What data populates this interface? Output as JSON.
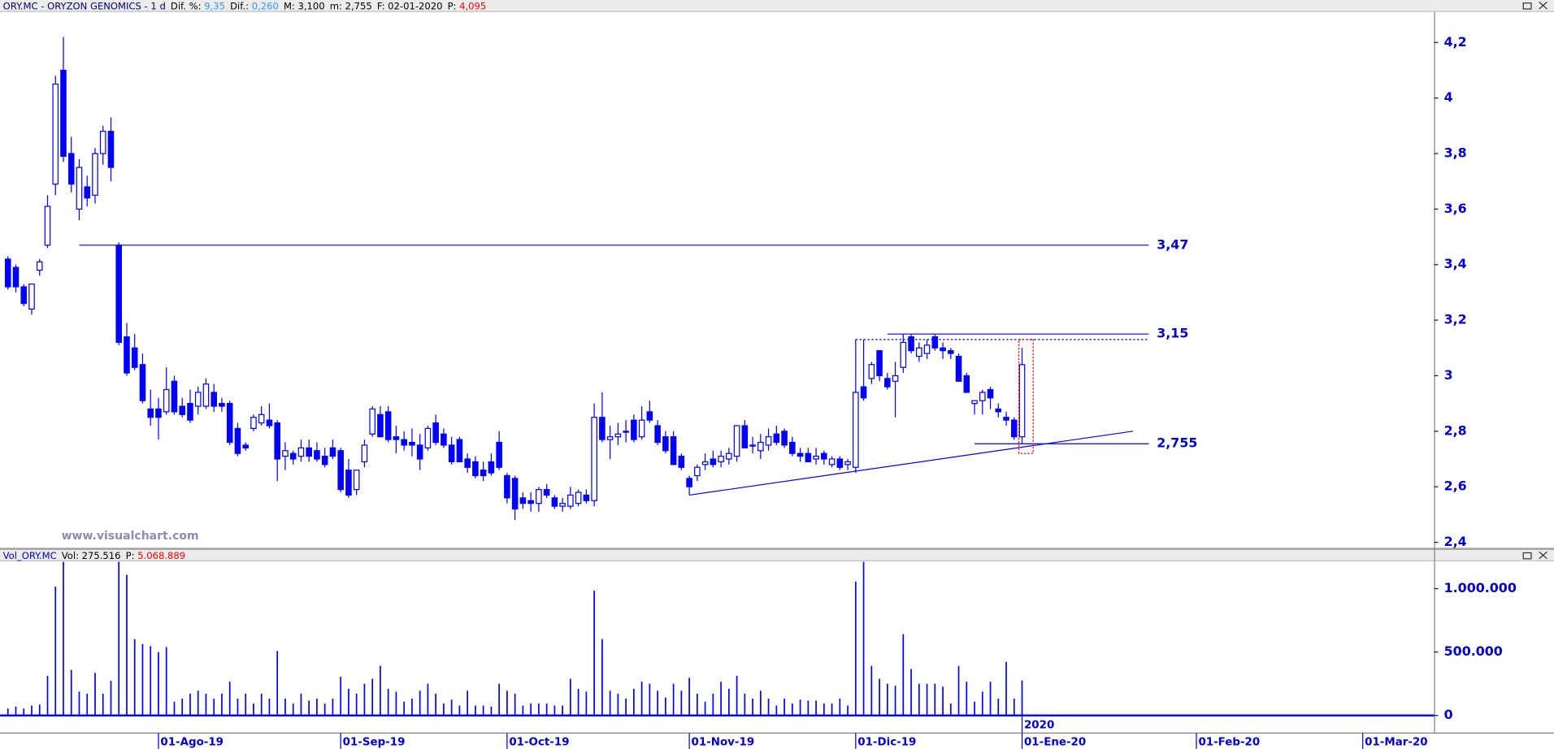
{
  "chart_data": [
    {
      "type": "candlestick",
      "title": "ORY.MC - ORYZON GENOMICS - 1 d",
      "fields": [
        {
          "label": "Dif. %:",
          "value": "9,35",
          "color": "#3399ff"
        },
        {
          "label": "Dif.:",
          "value": "0,260",
          "color": "#3399ff"
        },
        {
          "label": "M:",
          "value": "3,100",
          "color": "#000000"
        },
        {
          "label": "m:",
          "value": "2,755",
          "color": "#000000"
        },
        {
          "label": "F:",
          "value": "02-01-2020",
          "color": "#000000"
        },
        {
          "label": "P:",
          "value": "4,095",
          "color": "#ff0000"
        }
      ],
      "watermark": "www.visualchart.com",
      "color": "#0000ff",
      "xlim": [
        -1,
        180
      ],
      "ylim": [
        2.38,
        4.31
      ],
      "yticks": [
        {
          "value": 4.2,
          "label": "4,2"
        },
        4,
        {
          "value": 3.8,
          "label": "3,8"
        },
        {
          "value": 3.6,
          "label": "3,6"
        },
        {
          "value": 3.4,
          "label": "3,4"
        },
        {
          "value": 3.2,
          "label": "3,2"
        },
        3,
        {
          "value": 2.8,
          "label": "2,8"
        },
        {
          "value": 2.6,
          "label": "2,6"
        },
        {
          "value": 2.4,
          "label": "2,4"
        }
      ],
      "ohlc": [
        [
          3.42,
          3.43,
          3.31,
          3.32
        ],
        [
          3.39,
          3.4,
          3.3,
          3.32
        ],
        [
          3.32,
          3.33,
          3.25,
          3.26
        ],
        [
          3.24,
          3.33,
          3.22,
          3.33
        ],
        [
          3.38,
          3.42,
          3.36,
          3.41
        ],
        [
          3.47,
          3.65,
          3.46,
          3.61
        ],
        [
          3.69,
          4.08,
          3.65,
          4.05
        ],
        [
          4.1,
          4.22,
          3.77,
          3.79
        ],
        [
          3.8,
          3.86,
          3.66,
          3.69
        ],
        [
          3.6,
          3.78,
          3.56,
          3.75
        ],
        [
          3.68,
          3.72,
          3.61,
          3.64
        ],
        [
          3.65,
          3.82,
          3.62,
          3.8
        ],
        [
          3.8,
          3.9,
          3.76,
          3.88
        ],
        [
          3.88,
          3.93,
          3.7,
          3.75
        ],
        [
          3.47,
          3.48,
          3.11,
          3.12
        ],
        [
          3.14,
          3.19,
          3.0,
          3.01
        ],
        [
          3.1,
          3.15,
          3.02,
          3.03
        ],
        [
          3.04,
          3.08,
          2.9,
          2.91
        ],
        [
          2.88,
          2.95,
          2.82,
          2.85
        ],
        [
          2.88,
          2.92,
          2.77,
          2.85
        ],
        [
          2.87,
          3.03,
          2.86,
          2.95
        ],
        [
          2.98,
          3.0,
          2.86,
          2.87
        ],
        [
          2.89,
          2.92,
          2.85,
          2.86
        ],
        [
          2.9,
          2.95,
          2.83,
          2.84
        ],
        [
          2.89,
          2.96,
          2.86,
          2.94
        ],
        [
          2.89,
          2.99,
          2.88,
          2.97
        ],
        [
          2.94,
          2.97,
          2.87,
          2.89
        ],
        [
          2.9,
          2.92,
          2.87,
          2.89
        ],
        [
          2.9,
          2.91,
          2.75,
          2.76
        ],
        [
          2.81,
          2.83,
          2.71,
          2.72
        ],
        [
          2.75,
          2.76,
          2.73,
          2.74
        ],
        [
          2.81,
          2.86,
          2.8,
          2.85
        ],
        [
          2.83,
          2.89,
          2.82,
          2.86
        ],
        [
          2.84,
          2.9,
          2.81,
          2.82
        ],
        [
          2.83,
          2.84,
          2.62,
          2.7
        ],
        [
          2.71,
          2.76,
          2.66,
          2.73
        ],
        [
          2.72,
          2.73,
          2.68,
          2.7
        ],
        [
          2.71,
          2.77,
          2.69,
          2.74
        ],
        [
          2.74,
          2.77,
          2.69,
          2.71
        ],
        [
          2.73,
          2.76,
          2.69,
          2.7
        ],
        [
          2.71,
          2.74,
          2.67,
          2.68
        ],
        [
          2.74,
          2.77,
          2.7,
          2.71
        ],
        [
          2.73,
          2.74,
          2.58,
          2.59
        ],
        [
          2.66,
          2.7,
          2.56,
          2.57
        ],
        [
          2.59,
          2.66,
          2.57,
          2.66
        ],
        [
          2.69,
          2.77,
          2.67,
          2.75
        ],
        [
          2.79,
          2.89,
          2.78,
          2.88
        ],
        [
          2.86,
          2.89,
          2.78,
          2.78
        ],
        [
          2.87,
          2.89,
          2.76,
          2.77
        ],
        [
          2.78,
          2.82,
          2.72,
          2.77
        ],
        [
          2.77,
          2.8,
          2.73,
          2.75
        ],
        [
          2.76,
          2.81,
          2.71,
          2.75
        ],
        [
          2.75,
          2.79,
          2.66,
          2.7
        ],
        [
          2.74,
          2.82,
          2.73,
          2.81
        ],
        [
          2.83,
          2.86,
          2.75,
          2.76
        ],
        [
          2.79,
          2.81,
          2.74,
          2.75
        ],
        [
          2.75,
          2.78,
          2.68,
          2.69
        ],
        [
          2.77,
          2.78,
          2.69,
          2.69
        ],
        [
          2.7,
          2.72,
          2.65,
          2.67
        ],
        [
          2.69,
          2.71,
          2.63,
          2.64
        ],
        [
          2.66,
          2.69,
          2.62,
          2.64
        ],
        [
          2.69,
          2.72,
          2.64,
          2.65
        ],
        [
          2.76,
          2.8,
          2.66,
          2.67
        ],
        [
          2.64,
          2.65,
          2.54,
          2.56
        ],
        [
          2.63,
          2.64,
          2.48,
          2.52
        ],
        [
          2.56,
          2.58,
          2.52,
          2.54
        ],
        [
          2.55,
          2.58,
          2.51,
          2.54
        ],
        [
          2.54,
          2.6,
          2.51,
          2.59
        ],
        [
          2.59,
          2.61,
          2.56,
          2.57
        ],
        [
          2.56,
          2.57,
          2.52,
          2.53
        ],
        [
          2.53,
          2.56,
          2.51,
          2.54
        ],
        [
          2.53,
          2.6,
          2.52,
          2.57
        ],
        [
          2.54,
          2.59,
          2.53,
          2.58
        ],
        [
          2.57,
          2.59,
          2.54,
          2.55
        ],
        [
          2.55,
          2.9,
          2.53,
          2.85
        ],
        [
          2.85,
          2.94,
          2.76,
          2.77
        ],
        [
          2.77,
          2.82,
          2.7,
          2.78
        ],
        [
          2.78,
          2.83,
          2.75,
          2.79
        ],
        [
          2.8,
          2.84,
          2.76,
          2.8
        ],
        [
          2.84,
          2.86,
          2.76,
          2.77
        ],
        [
          2.78,
          2.89,
          2.77,
          2.84
        ],
        [
          2.87,
          2.91,
          2.83,
          2.84
        ],
        [
          2.82,
          2.84,
          2.75,
          2.76
        ],
        [
          2.78,
          2.8,
          2.72,
          2.73
        ],
        [
          2.78,
          2.8,
          2.68,
          2.68
        ],
        [
          2.71,
          2.72,
          2.66,
          2.67
        ],
        [
          2.63,
          2.64,
          2.57,
          2.6
        ],
        [
          2.64,
          2.68,
          2.62,
          2.67
        ],
        [
          2.68,
          2.72,
          2.66,
          2.69
        ],
        [
          2.7,
          2.73,
          2.67,
          2.68
        ],
        [
          2.69,
          2.73,
          2.67,
          2.71
        ],
        [
          2.7,
          2.74,
          2.68,
          2.72
        ],
        [
          2.71,
          2.82,
          2.69,
          2.82
        ],
        [
          2.82,
          2.84,
          2.74,
          2.74
        ],
        [
          2.75,
          2.78,
          2.72,
          2.75
        ],
        [
          2.73,
          2.79,
          2.7,
          2.76
        ],
        [
          2.75,
          2.81,
          2.73,
          2.78
        ],
        [
          2.79,
          2.82,
          2.75,
          2.76
        ],
        [
          2.8,
          2.81,
          2.74,
          2.75
        ],
        [
          2.76,
          2.78,
          2.71,
          2.72
        ],
        [
          2.72,
          2.74,
          2.69,
          2.71
        ],
        [
          2.72,
          2.74,
          2.69,
          2.69
        ],
        [
          2.7,
          2.74,
          2.68,
          2.71
        ],
        [
          2.72,
          2.73,
          2.68,
          2.7
        ],
        [
          2.68,
          2.71,
          2.67,
          2.7
        ],
        [
          2.7,
          2.71,
          2.66,
          2.67
        ],
        [
          2.68,
          2.7,
          2.66,
          2.69
        ],
        [
          2.67,
          3.13,
          2.65,
          2.94
        ],
        [
          2.96,
          3.13,
          2.91,
          2.92
        ],
        [
          2.99,
          3.05,
          2.97,
          3.04
        ],
        [
          3.09,
          3.09,
          2.98,
          3.0
        ],
        [
          2.99,
          3.01,
          2.95,
          2.96
        ],
        [
          2.98,
          3.05,
          2.85,
          3.0
        ],
        [
          3.03,
          3.15,
          3.01,
          3.12
        ],
        [
          3.14,
          3.15,
          3.08,
          3.09
        ],
        [
          3.07,
          3.12,
          3.05,
          3.1
        ],
        [
          3.08,
          3.13,
          3.06,
          3.11
        ],
        [
          3.14,
          3.15,
          3.09,
          3.1
        ],
        [
          3.1,
          3.12,
          3.06,
          3.09
        ],
        [
          3.09,
          3.1,
          3.06,
          3.08
        ],
        [
          3.07,
          3.08,
          2.98,
          2.98
        ],
        [
          3.0,
          3.01,
          2.94,
          2.94
        ],
        [
          2.9,
          2.91,
          2.86,
          2.91
        ],
        [
          2.91,
          2.95,
          2.86,
          2.94
        ],
        [
          2.95,
          2.96,
          2.88,
          2.92
        ],
        [
          2.88,
          2.9,
          2.85,
          2.87
        ],
        [
          2.85,
          2.87,
          2.82,
          2.84
        ],
        [
          2.84,
          2.85,
          2.77,
          2.78
        ],
        [
          2.78,
          3.1,
          2.755,
          3.04
        ]
      ],
      "levels": [
        {
          "value": 3.47,
          "label": "3,47",
          "from": 9,
          "to": 144
        },
        {
          "value": 3.15,
          "label": "3,15",
          "from": 111,
          "to": 144
        },
        {
          "value": 2.755,
          "label": "2,755",
          "from": 122,
          "to": 144
        }
      ],
      "dotted_level": {
        "value": 3.13,
        "from": 107,
        "to": 144
      },
      "trendline": {
        "x": [
          86,
          142
        ],
        "y": [
          2.57,
          2.8
        ]
      },
      "highlight": {
        "x": [
          127.6,
          129.4
        ],
        "y": [
          2.72,
          3.13
        ],
        "color": "#ff0000"
      }
    },
    {
      "type": "bar",
      "title": "Vol_ORY.MC",
      "fields": [
        {
          "label": "Vol:",
          "value": "275.516",
          "color": "#000000"
        },
        {
          "label": "P:",
          "value": "5.068.889",
          "color": "#ff0000"
        }
      ],
      "color": "#0000ff",
      "xlim": [
        -1,
        180
      ],
      "ylim": [
        -100000,
        1220000
      ],
      "yticks": [
        {
          "value": 1000000,
          "label": "1.000.000"
        },
        {
          "value": 500000,
          "label": "500.000"
        },
        0
      ],
      "xticks": [
        {
          "value": 19,
          "label": "01-Ago-19"
        },
        {
          "value": 42,
          "label": "01-Sep-19"
        },
        {
          "value": 63,
          "label": "01-Oct-19"
        },
        {
          "value": 86,
          "label": "01-Nov-19"
        },
        {
          "value": 107,
          "label": "01-Dic-19"
        },
        {
          "value": 128,
          "label": "01-Ene-20"
        },
        {
          "value": 150,
          "label": "01-Feb-20"
        },
        {
          "value": 171,
          "label": "01-Mar-20"
        }
      ],
      "year_label": {
        "value": 128,
        "label": "2020"
      },
      "values": [
        55000,
        70000,
        55000,
        78000,
        86000,
        313000,
        1016000,
        1211000,
        359000,
        188000,
        172000,
        336000,
        172000,
        273000,
        1211000,
        1109000,
        602000,
        563000,
        547000,
        500000,
        539000,
        109000,
        133000,
        172000,
        195000,
        172000,
        133000,
        172000,
        266000,
        133000,
        172000,
        94000,
        172000,
        133000,
        508000,
        133000,
        94000,
        172000,
        117000,
        133000,
        94000,
        133000,
        305000,
        211000,
        172000,
        250000,
        289000,
        391000,
        211000,
        188000,
        109000,
        133000,
        195000,
        250000,
        172000,
        94000,
        125000,
        78000,
        195000,
        78000,
        78000,
        70000,
        250000,
        195000,
        172000,
        78000,
        94000,
        94000,
        94000,
        78000,
        78000,
        289000,
        211000,
        188000,
        984000,
        602000,
        195000,
        172000,
        133000,
        211000,
        266000,
        250000,
        195000,
        141000,
        250000,
        195000,
        297000,
        172000,
        109000,
        172000,
        266000,
        211000,
        313000,
        172000,
        133000,
        195000,
        133000,
        78000,
        133000,
        94000,
        125000,
        117000,
        117000,
        94000,
        94000,
        133000,
        78000,
        1055000,
        1211000,
        391000,
        289000,
        250000,
        234000,
        641000,
        367000,
        250000,
        250000,
        250000,
        227000,
        94000,
        391000,
        266000,
        109000,
        188000,
        266000,
        133000,
        422000,
        133000,
        275516
      ]
    }
  ]
}
